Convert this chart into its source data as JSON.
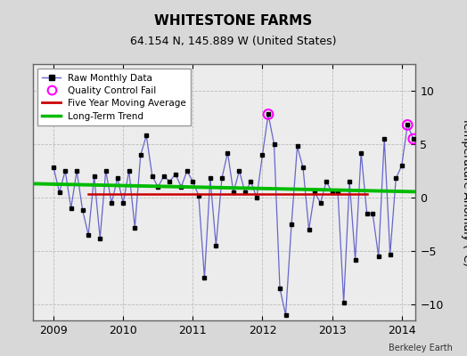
{
  "title": "WHITESTONE FARMS",
  "subtitle": "64.154 N, 145.889 W (United States)",
  "attribution": "Berkeley Earth",
  "ylabel": "Temperature Anomaly (°C)",
  "ylim": [
    -11.5,
    12.5
  ],
  "yticks": [
    -10,
    -5,
    0,
    5,
    10
  ],
  "xlim": [
    2008.7,
    2014.2
  ],
  "xticks": [
    2009,
    2010,
    2011,
    2012,
    2013,
    2014
  ],
  "background_color": "#d8d8d8",
  "plot_bg_color": "#ececec",
  "raw_color": "#6666cc",
  "trend_color": "#00bb00",
  "mavg_color": "#cc0000",
  "qc_color": "#ff00ff",
  "monthly_data": [
    [
      2009.0,
      2.8
    ],
    [
      2009.083,
      0.5
    ],
    [
      2009.167,
      2.5
    ],
    [
      2009.25,
      -1.0
    ],
    [
      2009.333,
      2.5
    ],
    [
      2009.417,
      -1.2
    ],
    [
      2009.5,
      -3.5
    ],
    [
      2009.583,
      2.0
    ],
    [
      2009.667,
      -3.8
    ],
    [
      2009.75,
      2.5
    ],
    [
      2009.833,
      -0.5
    ],
    [
      2009.917,
      1.8
    ],
    [
      2010.0,
      -0.5
    ],
    [
      2010.083,
      2.5
    ],
    [
      2010.167,
      -2.8
    ],
    [
      2010.25,
      4.0
    ],
    [
      2010.333,
      5.8
    ],
    [
      2010.417,
      2.0
    ],
    [
      2010.5,
      1.0
    ],
    [
      2010.583,
      2.0
    ],
    [
      2010.667,
      1.5
    ],
    [
      2010.75,
      2.2
    ],
    [
      2010.833,
      1.0
    ],
    [
      2010.917,
      2.5
    ],
    [
      2011.0,
      1.5
    ],
    [
      2011.083,
      0.2
    ],
    [
      2011.167,
      -7.5
    ],
    [
      2011.25,
      1.8
    ],
    [
      2011.333,
      -4.5
    ],
    [
      2011.417,
      1.8
    ],
    [
      2011.5,
      4.2
    ],
    [
      2011.583,
      0.5
    ],
    [
      2011.667,
      2.5
    ],
    [
      2011.75,
      0.5
    ],
    [
      2011.833,
      1.5
    ],
    [
      2011.917,
      0.0
    ],
    [
      2012.0,
      4.0
    ],
    [
      2012.083,
      7.8
    ],
    [
      2012.167,
      5.0
    ],
    [
      2012.25,
      -8.5
    ],
    [
      2012.333,
      -11.0
    ],
    [
      2012.417,
      -2.5
    ],
    [
      2012.5,
      4.8
    ],
    [
      2012.583,
      2.8
    ],
    [
      2012.667,
      -3.0
    ],
    [
      2012.75,
      0.5
    ],
    [
      2012.833,
      -0.5
    ],
    [
      2012.917,
      1.5
    ],
    [
      2013.0,
      0.5
    ],
    [
      2013.083,
      0.5
    ],
    [
      2013.167,
      -9.8
    ],
    [
      2013.25,
      1.5
    ],
    [
      2013.333,
      -5.8
    ],
    [
      2013.417,
      4.2
    ],
    [
      2013.5,
      -1.5
    ],
    [
      2013.583,
      -1.5
    ],
    [
      2013.667,
      -5.5
    ],
    [
      2013.75,
      5.5
    ],
    [
      2013.833,
      -5.3
    ],
    [
      2013.917,
      1.8
    ],
    [
      2014.0,
      3.0
    ],
    [
      2014.083,
      6.8
    ],
    [
      2014.167,
      5.5
    ]
  ],
  "qc_fail_points": [
    [
      2012.083,
      7.8
    ],
    [
      2014.083,
      6.8
    ],
    [
      2014.167,
      5.5
    ]
  ],
  "trend_x": [
    2008.7,
    2014.2
  ],
  "trend_y": [
    1.3,
    0.55
  ],
  "mavg_visible": false
}
